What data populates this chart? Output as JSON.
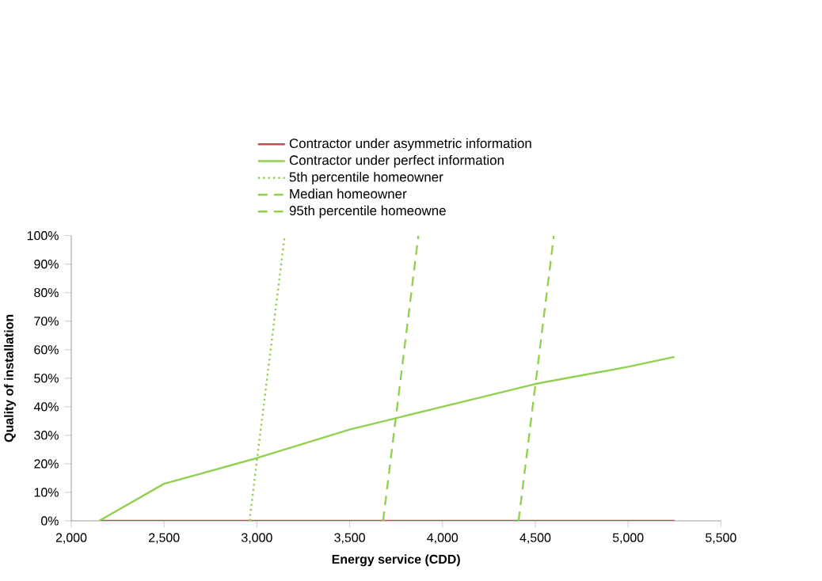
{
  "chart_data": {
    "type": "line",
    "xlabel": "Energy service (CDD)",
    "ylabel": "Quality of installation",
    "legend": "top",
    "grid": false,
    "marker": "none",
    "xlim": [
      2000,
      5500
    ],
    "xticks": [
      {
        "value": 2000,
        "label": "2,000"
      },
      {
        "value": 2500,
        "label": "2,500"
      },
      {
        "value": 3000,
        "label": "3,000"
      },
      {
        "value": 3500,
        "label": "3,500"
      },
      {
        "value": 4000,
        "label": "4,000"
      },
      {
        "value": 4500,
        "label": "4,500"
      },
      {
        "value": 5000,
        "label": "5,000"
      },
      {
        "value": 5500,
        "label": "5,500"
      }
    ],
    "ylim": [
      0,
      100
    ],
    "yticks": [
      {
        "value": 0,
        "label": "0%"
      },
      {
        "value": 10,
        "label": "10%"
      },
      {
        "value": 20,
        "label": "20%"
      },
      {
        "value": 30,
        "label": "30%"
      },
      {
        "value": 40,
        "label": "40%"
      },
      {
        "value": 50,
        "label": "50%"
      },
      {
        "value": 60,
        "label": "60%"
      },
      {
        "value": 70,
        "label": "70%"
      },
      {
        "value": 80,
        "label": "80%"
      },
      {
        "value": 90,
        "label": "90%"
      },
      {
        "value": 100,
        "label": "100%"
      }
    ],
    "series": [
      {
        "name": "Contractor under asymmetric information",
        "color": "#c0504d",
        "line_style": "solid",
        "x": [
          2150,
          5250
        ],
        "values": [
          0,
          0
        ]
      },
      {
        "name": "Contractor under perfect information",
        "color": "#92d050",
        "line_style": "solid",
        "x": [
          2150,
          2500,
          3000,
          3500,
          4000,
          4500,
          5000,
          5250
        ],
        "values": [
          0,
          13,
          22,
          32,
          40,
          48,
          54,
          57.5
        ]
      },
      {
        "name": "5th percentile homeowner",
        "color": "#92d050",
        "line_style": "dotted",
        "x": [
          2960,
          3150
        ],
        "values": [
          0,
          100
        ]
      },
      {
        "name": "Median homeowner",
        "color": "#92d050",
        "line_style": "dashed",
        "x": [
          3680,
          3870
        ],
        "values": [
          0,
          100
        ]
      },
      {
        "name": "95th percentile homeowne",
        "color": "#92d050",
        "line_style": "dashed",
        "x": [
          4410,
          4600
        ],
        "values": [
          0,
          100
        ]
      }
    ]
  }
}
